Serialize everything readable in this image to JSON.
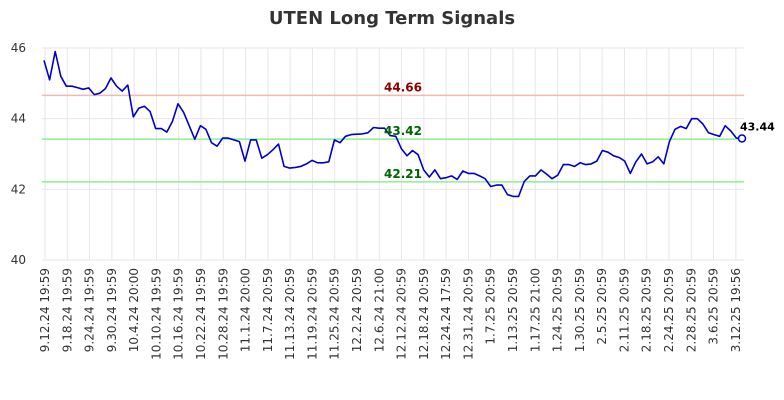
{
  "chart_data": {
    "type": "line",
    "title": "UTEN Long Term Signals",
    "xlabel": "",
    "ylabel": "",
    "ylim": [
      40,
      46
    ],
    "yticks": [
      40,
      42,
      44,
      46
    ],
    "grid": true,
    "x_ticks": [
      "9.12.24 19:59",
      "9.18.24 19:59",
      "9.24.24 19:59",
      "9.30.24 19:59",
      "10.4.24 20:00",
      "10.10.24 19:59",
      "10.16.24 19:59",
      "10.22.24 19:59",
      "10.28.24 19:59",
      "11.1.24 20:00",
      "11.7.24 20:59",
      "11.13.24 20:59",
      "11.19.24 20:59",
      "11.25.24 20:59",
      "12.2.24 20:59",
      "12.6.24 21:00",
      "12.12.24 20:59",
      "12.18.24 20:59",
      "12.24.24 17:59",
      "12.31.24 20:59",
      "1.7.25 20:59",
      "1.13.25 20:59",
      "1.17.25 21:00",
      "1.24.25 20:59",
      "1.30.25 20:59",
      "2.5.25 20:59",
      "2.11.25 20:59",
      "2.18.25 20:59",
      "2.24.25 20:59",
      "2.28.25 20:59",
      "3.6.25 20:59",
      "3.12.25 19:56"
    ],
    "series": [
      {
        "color": "#0000cc",
        "values": [
          45.65,
          45.1,
          45.9,
          45.2,
          44.92,
          44.92,
          44.88,
          44.83,
          44.87,
          44.68,
          44.72,
          44.85,
          45.15,
          44.92,
          44.78,
          44.95,
          44.05,
          44.3,
          44.35,
          44.2,
          43.72,
          43.72,
          43.62,
          43.92,
          44.42,
          44.18,
          43.8,
          43.42,
          43.8,
          43.7,
          43.32,
          43.22,
          43.45,
          43.45,
          43.4,
          43.35,
          42.8,
          43.4,
          43.4,
          42.88,
          42.98,
          43.12,
          43.28,
          42.65,
          42.6,
          42.62,
          42.65,
          42.72,
          42.82,
          42.75,
          42.75,
          42.78,
          43.4,
          43.32,
          43.5,
          43.55,
          43.56,
          43.57,
          43.6,
          43.75,
          43.73,
          43.73,
          43.52,
          43.5,
          43.15,
          42.95,
          43.1,
          42.98,
          42.55,
          42.35,
          42.55,
          42.3,
          42.33,
          42.38,
          42.28,
          42.52,
          42.45,
          42.45,
          42.38,
          42.3,
          42.08,
          42.12,
          42.12,
          41.85,
          41.8,
          41.8,
          42.22,
          42.38,
          42.38,
          42.55,
          42.43,
          42.3,
          42.4,
          42.7,
          42.7,
          42.65,
          42.75,
          42.7,
          42.72,
          42.8,
          43.1,
          43.05,
          42.95,
          42.9,
          42.8,
          42.45,
          42.78,
          43.0,
          42.72,
          42.78,
          42.92,
          42.72,
          43.35,
          43.7,
          43.78,
          43.72,
          44.0,
          44.0,
          43.85,
          43.6,
          43.55,
          43.5,
          43.8,
          43.65,
          43.45,
          43.44
        ]
      }
    ],
    "levels": [
      {
        "value": 44.66,
        "label": "44.66",
        "line_color": "#f5b7b1",
        "text_color": "#8b0000"
      },
      {
        "value": 43.42,
        "label": "43.42",
        "line_color": "#90ee90",
        "text_color": "#006400"
      },
      {
        "value": 42.21,
        "label": "42.21",
        "line_color": "#90ee90",
        "text_color": "#006400"
      }
    ],
    "last_value_label": "43.44"
  }
}
